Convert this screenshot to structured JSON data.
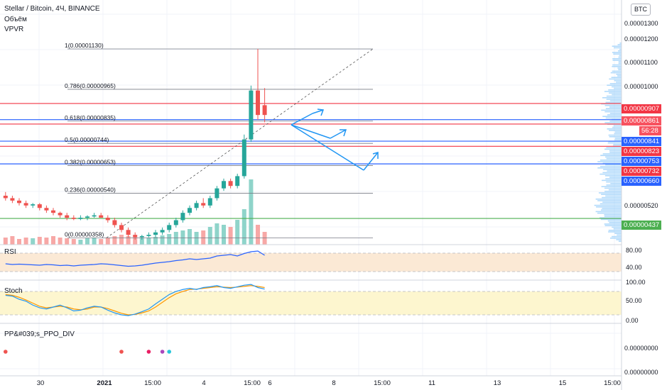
{
  "header": {
    "title": "Stellar / Bitcoin, 4Ч, BINANCE",
    "volume_label": "Объём",
    "vpvr_label": "VPVR",
    "currency": "BTC"
  },
  "price_axis": {
    "ticks": [
      "0.00001300",
      "0.00001200",
      "0.00001100",
      "0.00001000",
      "0.00000520",
      "0.00000000",
      "0.00000000"
    ]
  },
  "price_labels": [
    {
      "text": "0.00000907",
      "color": "#f23645"
    },
    {
      "text": "0.00000861",
      "color": "#f7525f"
    },
    {
      "text": "56:28",
      "color": "#f7525f"
    },
    {
      "text": "0.00000841",
      "color": "#2962ff"
    },
    {
      "text": "0.00000823",
      "color": "#f23645"
    },
    {
      "text": "0.00000753",
      "color": "#2962ff"
    },
    {
      "text": "0.00000732",
      "color": "#f23645"
    },
    {
      "text": "0.00000660",
      "color": "#2962ff"
    },
    {
      "text": "0.00000437",
      "color": "#4caf50"
    }
  ],
  "fib_levels": [
    {
      "label": "1(0.00001130)",
      "price": 1.13e-05
    },
    {
      "label": "0.786(0.00000965)",
      "price": 9.65e-06
    },
    {
      "label": "0.618(0.00000835)",
      "price": 8.35e-06
    },
    {
      "label": "0.5(0.00000744)",
      "price": 7.44e-06
    },
    {
      "label": "0.382(0.00000653)",
      "price": 6.53e-06
    },
    {
      "label": "0.236(0.00000540)",
      "price": 5.4e-06
    },
    {
      "label": "0(0.00000358)",
      "price": 3.58e-06
    }
  ],
  "horizontal_lines": [
    {
      "price": 9.07e-06,
      "color": "#f23645"
    },
    {
      "price": 8.23e-06,
      "color": "#f23645"
    },
    {
      "price": 7.32e-06,
      "color": "#f23645"
    },
    {
      "price": 8.41e-06,
      "color": "#2962ff"
    },
    {
      "price": 7.53e-06,
      "color": "#2962ff"
    },
    {
      "price": 6.6e-06,
      "color": "#2962ff"
    },
    {
      "price": 4.37e-06,
      "color": "#4caf50"
    }
  ],
  "time_axis": [
    "30",
    "2021",
    "15:00",
    "4",
    "15:00",
    "6",
    "8",
    "15:00",
    "11",
    "13",
    "15",
    "15:00"
  ],
  "indicators": {
    "rsi": {
      "name": "RSI",
      "ticks": [
        "80.00",
        "40.00"
      ]
    },
    "stoch": {
      "name": "Stoch",
      "ticks": [
        "100.00",
        "50.00",
        "0.00"
      ]
    },
    "ppo": {
      "name": "PP&#039;s_PPO_DIV",
      "ticks": [
        "0.00000000",
        "0.00000000"
      ]
    }
  },
  "colors": {
    "up": "#26a69a",
    "down": "#ef5350",
    "grid": "#f0f3fa",
    "fib": "#787b86",
    "arrow": "#2196f3"
  },
  "chart_data": {
    "type": "candlestick",
    "symbol": "Stellar / Bitcoin",
    "timeframe": "4Ч",
    "exchange": "BINANCE",
    "ylim": [
      3.3e-06,
      1.33e-05
    ],
    "candles": [
      {
        "o": 5.3e-06,
        "h": 5.45e-06,
        "l": 5.1e-06,
        "c": 5.2e-06
      },
      {
        "o": 5.2e-06,
        "h": 5.3e-06,
        "l": 5e-06,
        "c": 5.1e-06
      },
      {
        "o": 5.1e-06,
        "h": 5.2e-06,
        "l": 4.9e-06,
        "c": 5e-06
      },
      {
        "o": 5e-06,
        "h": 5.1e-06,
        "l": 4.8e-06,
        "c": 4.9e-06
      },
      {
        "o": 4.9e-06,
        "h": 5e-06,
        "l": 4.8e-06,
        "c": 4.95e-06
      },
      {
        "o": 4.95e-06,
        "h": 5e-06,
        "l": 4.7e-06,
        "c": 4.8e-06
      },
      {
        "o": 4.8e-06,
        "h": 4.9e-06,
        "l": 4.6e-06,
        "c": 4.7e-06
      },
      {
        "o": 4.7e-06,
        "h": 4.8e-06,
        "l": 4.5e-06,
        "c": 4.6e-06
      },
      {
        "o": 4.6e-06,
        "h": 4.65e-06,
        "l": 4.4e-06,
        "c": 4.5e-06
      },
      {
        "o": 4.5e-06,
        "h": 4.6e-06,
        "l": 4.3e-06,
        "c": 4.4e-06
      },
      {
        "o": 4.4e-06,
        "h": 4.5e-06,
        "l": 4.3e-06,
        "c": 4.35e-06
      },
      {
        "o": 4.35e-06,
        "h": 4.5e-06,
        "l": 4.3e-06,
        "c": 4.4e-06
      },
      {
        "o": 4.4e-06,
        "h": 4.5e-06,
        "l": 4.3e-06,
        "c": 4.45e-06
      },
      {
        "o": 4.45e-06,
        "h": 4.6e-06,
        "l": 4.4e-06,
        "c": 4.5e-06
      },
      {
        "o": 4.5e-06,
        "h": 4.6e-06,
        "l": 4.4e-06,
        "c": 4.4e-06
      },
      {
        "o": 4.4e-06,
        "h": 4.5e-06,
        "l": 4.2e-06,
        "c": 4.3e-06
      },
      {
        "o": 4.3e-06,
        "h": 4.4e-06,
        "l": 4e-06,
        "c": 4.1e-06
      },
      {
        "o": 4.1e-06,
        "h": 4.2e-06,
        "l": 3.8e-06,
        "c": 3.9e-06
      },
      {
        "o": 3.9e-06,
        "h": 4e-06,
        "l": 3.6e-06,
        "c": 3.7e-06
      },
      {
        "o": 3.7e-06,
        "h": 3.8e-06,
        "l": 3.5e-06,
        "c": 3.6e-06
      },
      {
        "o": 3.6e-06,
        "h": 3.7e-06,
        "l": 3.5e-06,
        "c": 3.65e-06
      },
      {
        "o": 3.65e-06,
        "h": 3.8e-06,
        "l": 3.6e-06,
        "c": 3.7e-06
      },
      {
        "o": 3.7e-06,
        "h": 3.9e-06,
        "l": 3.6e-06,
        "c": 3.8e-06
      },
      {
        "o": 3.8e-06,
        "h": 4e-06,
        "l": 3.7e-06,
        "c": 3.9e-06
      },
      {
        "o": 3.9e-06,
        "h": 4.2e-06,
        "l": 3.8e-06,
        "c": 4.1e-06
      },
      {
        "o": 4.1e-06,
        "h": 4.4e-06,
        "l": 4e-06,
        "c": 4.3e-06
      },
      {
        "o": 4.3e-06,
        "h": 4.7e-06,
        "l": 4.2e-06,
        "c": 4.6e-06
      },
      {
        "o": 4.6e-06,
        "h": 4.9e-06,
        "l": 4.5e-06,
        "c": 4.8e-06
      },
      {
        "o": 4.8e-06,
        "h": 5.1e-06,
        "l": 4.7e-06,
        "c": 5e-06
      },
      {
        "o": 5e-06,
        "h": 5.2e-06,
        "l": 4.8e-06,
        "c": 4.9e-06
      },
      {
        "o": 4.9e-06,
        "h": 5.3e-06,
        "l": 4.8e-06,
        "c": 5.2e-06
      },
      {
        "o": 5.2e-06,
        "h": 5.7e-06,
        "l": 5.1e-06,
        "c": 5.6e-06
      },
      {
        "o": 5.6e-06,
        "h": 6e-06,
        "l": 5.5e-06,
        "c": 5.9e-06
      },
      {
        "o": 5.9e-06,
        "h": 6e-06,
        "l": 5.6e-06,
        "c": 5.7e-06
      },
      {
        "o": 5.7e-06,
        "h": 6.2e-06,
        "l": 5.6e-06,
        "c": 6.1e-06
      },
      {
        "o": 6.1e-06,
        "h": 7.8e-06,
        "l": 6e-06,
        "c": 7.6e-06
      },
      {
        "o": 7.6e-06,
        "h": 9.8e-06,
        "l": 7.5e-06,
        "c": 9.6e-06
      },
      {
        "o": 9.6e-06,
        "h": 1.13e-05,
        "l": 8.4e-06,
        "c": 8.6e-06
      },
      {
        "o": 9e-06,
        "h": 9.7e-06,
        "l": 8.3e-06,
        "c": 8.6e-06
      }
    ],
    "volume_relative": [
      0.1,
      0.12,
      0.08,
      0.1,
      0.09,
      0.11,
      0.1,
      0.12,
      0.1,
      0.09,
      0.08,
      0.07,
      0.09,
      0.1,
      0.08,
      0.1,
      0.12,
      0.14,
      0.12,
      0.1,
      0.09,
      0.1,
      0.11,
      0.13,
      0.15,
      0.18,
      0.2,
      0.22,
      0.18,
      0.2,
      0.25,
      0.3,
      0.28,
      0.25,
      0.35,
      0.5,
      0.92,
      0.28,
      0.18
    ],
    "fib_retracement": {
      "from": 3.58e-06,
      "to": 1.13e-05
    },
    "rsi": {
      "ylim": [
        0,
        100
      ],
      "values": [
        46,
        44,
        45,
        44,
        43,
        42,
        44,
        43,
        41,
        42,
        40,
        42,
        43,
        44,
        46,
        45,
        43,
        41,
        39,
        40,
        42,
        45,
        48,
        50,
        52,
        55,
        57,
        60,
        58,
        60,
        62,
        68,
        70,
        72,
        68,
        75,
        80,
        82,
        70
      ]
    },
    "stoch": {
      "ylim": [
        0,
        100
      ],
      "k": [
        70,
        68,
        60,
        55,
        45,
        38,
        35,
        40,
        45,
        38,
        30,
        32,
        38,
        42,
        40,
        32,
        25,
        20,
        18,
        22,
        28,
        35,
        48,
        60,
        72,
        80,
        85,
        88,
        85,
        90,
        92,
        95,
        90,
        88,
        92,
        96,
        98,
        90,
        86
      ],
      "d": [
        72,
        70,
        65,
        58,
        50,
        42,
        38,
        40,
        42,
        40,
        35,
        33,
        35,
        40,
        40,
        36,
        30,
        24,
        20,
        21,
        25,
        30,
        40,
        52,
        64,
        74,
        80,
        85,
        86,
        88,
        90,
        92,
        91,
        90,
        91,
        93,
        95,
        93,
        90
      ]
    },
    "ppo_div_markers": [
      {
        "index": 0,
        "color": "#ef5350"
      },
      {
        "index": 17,
        "color": "#ef5350"
      },
      {
        "index": 21,
        "color": "#e91e63"
      },
      {
        "index": 23,
        "color": "#ab47bc"
      },
      {
        "index": 24,
        "color": "#26c6da"
      }
    ]
  }
}
